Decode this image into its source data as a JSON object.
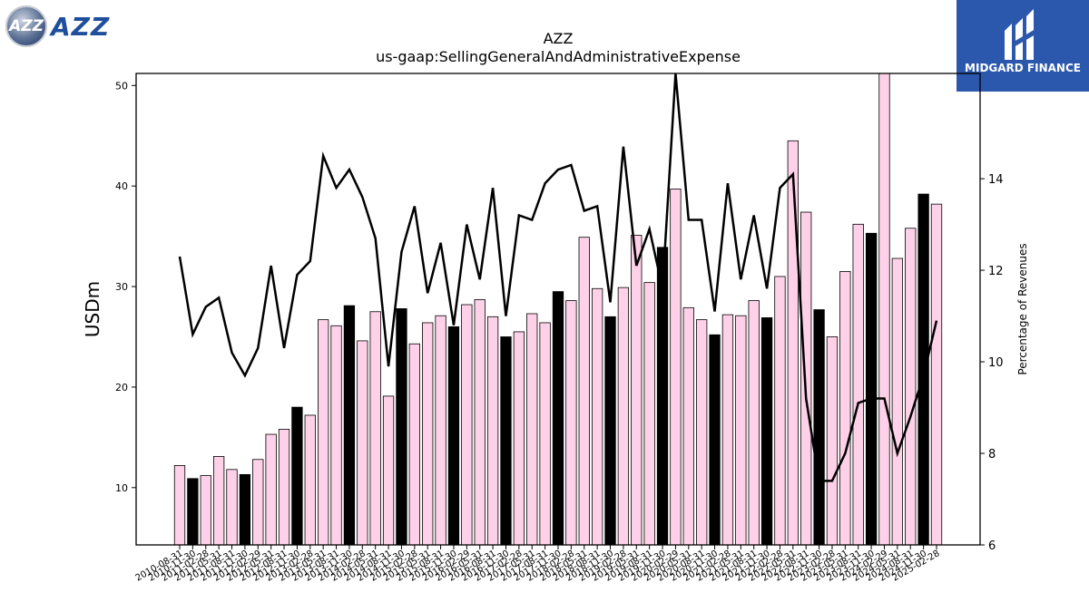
{
  "brand": {
    "left_logo_text": "AZZ",
    "right_logo_text": "MIDGARD FINANCE"
  },
  "colors": {
    "pink_bar": "#ffd1e8",
    "black_bar": "#000000",
    "line": "#000000"
  },
  "chart_data": {
    "type": "bar",
    "title": "AZZ",
    "subtitle": "us-gaap:SellingGeneralAndAdministrativeExpense",
    "ylabel": "USDm",
    "y2label": "Percentage of Revenues",
    "ylim": [
      4.3,
      51.2
    ],
    "y_ticks": [
      10,
      20,
      30,
      40,
      50
    ],
    "y2lim": [
      6,
      16.3
    ],
    "y2_ticks": [
      6,
      8,
      10,
      12,
      14
    ],
    "categories": [
      "2010-08-31",
      "2010-11-30",
      "2011-02-28",
      "2011-05-31",
      "2011-08-31",
      "2011-11-30",
      "2012-02-29",
      "2012-05-31",
      "2012-08-31",
      "2012-11-30",
      "2013-02-28",
      "2013-05-31",
      "2013-08-31",
      "2013-11-30",
      "2014-02-28",
      "2014-05-31",
      "2014-08-31",
      "2014-11-30",
      "2015-02-28",
      "2015-05-31",
      "2015-08-31",
      "2015-11-30",
      "2016-02-29",
      "2016-05-31",
      "2016-08-31",
      "2016-11-30",
      "2017-02-28",
      "2017-05-31",
      "2017-08-31",
      "2017-11-30",
      "2018-02-28",
      "2018-05-31",
      "2018-08-31",
      "2018-11-30",
      "2019-02-28",
      "2019-05-31",
      "2019-08-31",
      "2019-11-30",
      "2020-02-29",
      "2020-05-31",
      "2020-08-31",
      "2020-11-30",
      "2021-02-28",
      "2021-05-31",
      "2021-08-31",
      "2021-11-30",
      "2022-02-28",
      "2022-05-31",
      "2022-08-31",
      "2022-11-30",
      "2023-02-28",
      "2023-05-31",
      "2023-08-31",
      "2023-11-30",
      "2024-02-29",
      "2024-05-31",
      "2024-08-31",
      "2024-11-30",
      "2025-02-28"
    ],
    "series": [
      {
        "type": "bar",
        "axis": "left",
        "values": [
          12.2,
          10.9,
          11.2,
          13.1,
          11.8,
          11.3,
          12.8,
          15.3,
          15.8,
          18.0,
          17.2,
          26.7,
          26.1,
          28.1,
          24.6,
          27.5,
          19.1,
          27.8,
          24.3,
          26.4,
          27.1,
          26.0,
          28.2,
          28.7,
          27.0,
          25.0,
          25.5,
          27.3,
          26.4,
          29.5,
          28.6,
          34.9,
          29.8,
          27.0,
          29.9,
          35.1,
          30.4,
          33.9,
          39.7,
          27.9,
          26.7,
          25.2,
          27.2,
          27.1,
          28.6,
          26.9,
          31.0,
          44.5,
          37.4,
          27.7,
          25.0,
          31.5,
          36.2,
          35.3,
          51.2,
          32.8,
          35.8,
          39.2,
          38.2
        ],
        "highlight": [
          false,
          true,
          false,
          false,
          false,
          true,
          false,
          false,
          false,
          true,
          false,
          false,
          false,
          true,
          false,
          false,
          false,
          true,
          false,
          false,
          false,
          true,
          false,
          false,
          false,
          true,
          false,
          false,
          false,
          true,
          false,
          false,
          false,
          true,
          false,
          false,
          false,
          true,
          false,
          false,
          false,
          true,
          false,
          false,
          false,
          true,
          false,
          false,
          false,
          true,
          false,
          false,
          false,
          true,
          false,
          false,
          false,
          true,
          false
        ]
      },
      {
        "type": "line",
        "axis": "right",
        "values": [
          12.3,
          10.6,
          11.2,
          11.4,
          10.2,
          9.7,
          10.3,
          12.1,
          10.3,
          11.9,
          12.2,
          14.5,
          13.8,
          14.2,
          13.6,
          12.7,
          9.9,
          12.4,
          13.4,
          11.5,
          12.6,
          10.8,
          13.0,
          11.8,
          13.8,
          11.0,
          13.2,
          13.1,
          13.9,
          14.2,
          14.3,
          13.3,
          13.4,
          11.3,
          14.7,
          12.1,
          12.9,
          11.6,
          16.3,
          13.1,
          13.1,
          11.1,
          13.9,
          11.8,
          13.2,
          11.6,
          13.8,
          14.1,
          9.2,
          7.4,
          7.4,
          8.0,
          9.1,
          9.2,
          9.2,
          8.0,
          8.8,
          9.7,
          10.9
        ]
      }
    ]
  }
}
